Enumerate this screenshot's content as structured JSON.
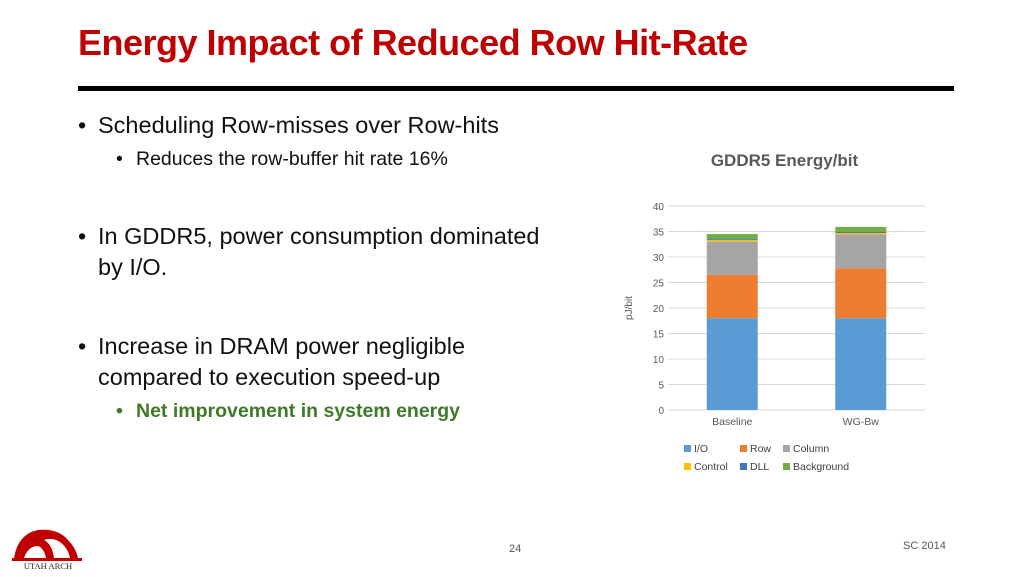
{
  "slide": {
    "title": "Energy Impact of Reduced Row Hit-Rate",
    "page_number": "24",
    "conference": "SC 2014",
    "logo_text": "UTAH ARCH"
  },
  "bullets": {
    "b1": "Scheduling Row-misses over Row-hits",
    "b1_sub": "Reduces the row-buffer hit rate 16%",
    "b2": "In GDDR5, power consumption dominated by I/O.",
    "b3": "Increase in DRAM power negligible compared to execution speed-up",
    "b3_sub": "Net improvement in system energy"
  },
  "colors": {
    "title": "#c00000",
    "highlight": "#3e7a29",
    "io": "#5b9bd5",
    "row": "#ed7d31",
    "column": "#a5a5a5",
    "control": "#ffc000",
    "dll": "#4472c4",
    "background": "#70ad47"
  },
  "chart_data": {
    "type": "bar",
    "stacked": true,
    "title": "GDDR5 Energy/bit",
    "ylabel": "pJ/bit",
    "xlabel": "",
    "ylim": [
      0,
      40
    ],
    "yticks": [
      0,
      5,
      10,
      15,
      20,
      25,
      30,
      35,
      40
    ],
    "grid": true,
    "legend": "bottom",
    "categories": [
      "Baseline",
      "WG-Bw"
    ],
    "series": [
      {
        "name": "I/O",
        "values": [
          18.0,
          18.0
        ]
      },
      {
        "name": "Row",
        "values": [
          8.5,
          9.8
        ]
      },
      {
        "name": "Column",
        "values": [
          6.5,
          6.6
        ]
      },
      {
        "name": "Control",
        "values": [
          0.3,
          0.3
        ]
      },
      {
        "name": "DLL",
        "values": [
          0.2,
          0.2
        ]
      },
      {
        "name": "Background",
        "values": [
          1.0,
          1.0
        ]
      }
    ]
  }
}
